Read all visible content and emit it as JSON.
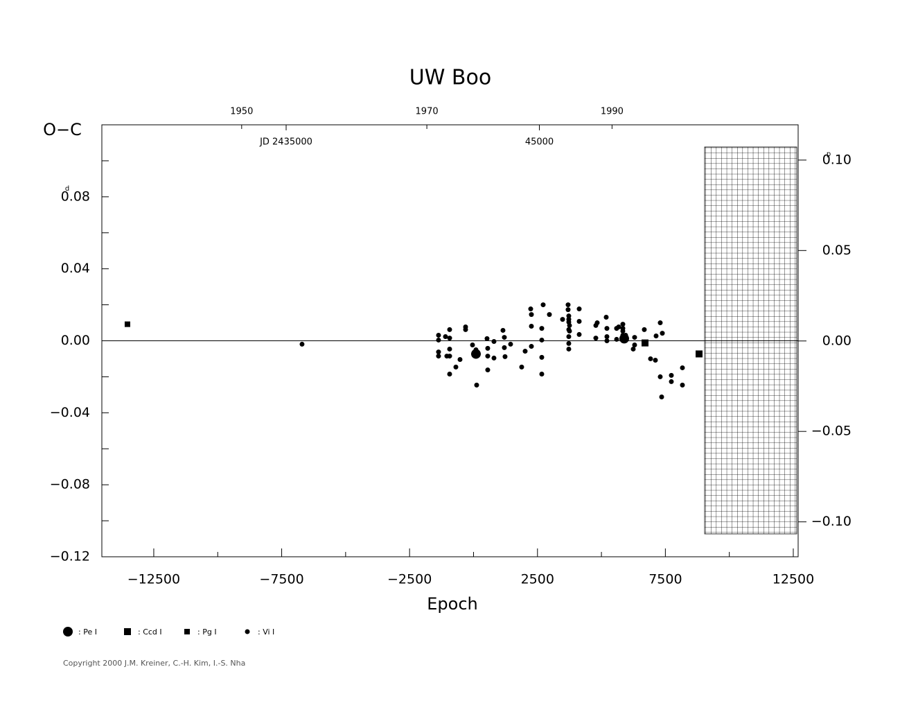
{
  "chart_data": {
    "type": "scatter",
    "title": "UW  Boo",
    "y_label": "O−C",
    "x_label": "Epoch",
    "y_unit": "d",
    "y2_unit": "p",
    "copyright": "Copyright 2000 J.M. Kreiner, C.-H. Kim, I.-S. Nha",
    "xlim": [
      -14530,
      12690
    ],
    "xticks": [
      {
        "value": -12500,
        "label": "−12500"
      },
      {
        "value": -7500,
        "label": "−7500"
      },
      {
        "value": -2500,
        "label": "−2500"
      },
      2500,
      7500,
      12500
    ],
    "xminorticks": [
      -10000,
      -5000,
      0,
      5000,
      10000
    ],
    "ylim": [
      -0.12,
      0.12
    ],
    "yticks": [
      {
        "value": -0.12,
        "label": "−0.12"
      },
      {
        "value": -0.08,
        "label": "−0.08"
      },
      {
        "value": -0.04,
        "label": "−0.04"
      },
      {
        "value": 0,
        "label": "0.00"
      },
      0.04,
      0.08
    ],
    "yminorticks": [
      -0.1,
      -0.06,
      -0.02,
      0.02,
      0.06,
      0.1
    ],
    "y2lim": [
      -0.1193,
      0.1195
    ],
    "y2ticks": [
      {
        "value": -0.1,
        "label": "−0.10"
      },
      {
        "value": -0.05,
        "label": "−0.05"
      },
      {
        "value": 0,
        "label": "0.00"
      },
      0.05,
      {
        "value": 0.1,
        "label": "0.10"
      }
    ],
    "x2lim": [
      1934.9,
      2010.1
    ],
    "x2ticks": [
      1950,
      1970,
      1990
    ],
    "x3lim": [
      2427722,
      2455219
    ],
    "x3ticks": [
      {
        "value": 2435000,
        "label": "JD 2435000"
      },
      {
        "value": 2445000,
        "label": "45000"
      }
    ],
    "series": [
      {
        "name": ": Pe I",
        "marker": "circle",
        "size": 7,
        "color": "#000000",
        "x": [
          95,
          5891
        ],
        "values": [
          -0.0073,
          0.0012
        ]
      },
      {
        "name": ": Ccd I",
        "marker": "square",
        "size": 10,
        "color": "#000000",
        "x": [
          6704,
          8817
        ],
        "values": [
          -0.0012,
          -0.0073
        ]
      },
      {
        "name": ": Pg I",
        "marker": "square",
        "size": 8,
        "color": "#000000",
        "x": [
          -13529
        ],
        "values": [
          0.0092
        ]
      },
      {
        "name": ": Vi I",
        "marker": "circle",
        "size": 3.5,
        "color": "#000000",
        "x": [
          -6704,
          -1368,
          -1368,
          -1368,
          -1368,
          -1097,
          -1043,
          -934,
          -934,
          -934,
          -934,
          -934,
          -690,
          -528,
          -311,
          -311,
          -40,
          95,
          122,
          528,
          555,
          555,
          555,
          799,
          799,
          1151,
          1205,
          1205,
          1232,
          1449,
          1882,
          2018,
          2235,
          2262,
          2262,
          2262,
          2668,
          2668,
          2668,
          2668,
          2722,
          2966,
          3481,
          3697,
          3697,
          3724,
          3724,
          3724,
          3724,
          3724,
          3724,
          3724,
          3752,
          3752,
          4131,
          4131,
          4131,
          4781,
          4781,
          4835,
          5187,
          5214,
          5214,
          5214,
          5593,
          5593,
          5674,
          5837,
          5837,
          5837,
          5837,
          5837,
          5945,
          6243,
          6297,
          6297,
          6676,
          6920,
          7110,
          7137,
          7299,
          7299,
          7354,
          7381,
          7733,
          7733,
          8166,
          8166
        ],
        "values": [
          -0.0019,
          0.0031,
          0.0004,
          -0.0062,
          -0.0085,
          0.0023,
          -0.0085,
          0.0062,
          0.0015,
          -0.0046,
          -0.0085,
          -0.0185,
          -0.0146,
          -0.0104,
          0.0077,
          0.0062,
          -0.0023,
          -0.005,
          -0.0246,
          0.0012,
          -0.0042,
          -0.0085,
          -0.0162,
          -0.0004,
          -0.0096,
          0.0058,
          0.0019,
          -0.0038,
          -0.0088,
          -0.0019,
          -0.0146,
          -0.0058,
          0.0177,
          0.0146,
          0.0081,
          -0.0031,
          0.0069,
          0.0004,
          -0.0092,
          -0.0185,
          0.02,
          0.0146,
          0.0119,
          0.02,
          0.0173,
          0.0138,
          0.0119,
          0.0104,
          0.0062,
          0.0023,
          -0.0015,
          -0.0046,
          0.0085,
          0.0054,
          0.0177,
          0.0108,
          0.0035,
          0.0015,
          0.0085,
          0.01,
          0.0131,
          0.0069,
          0.0023,
          0,
          0.0069,
          0.0008,
          0.0077,
          0.0092,
          0.0069,
          0.0054,
          0.0031,
          0.0008,
          0.0031,
          -0.0046,
          0.0019,
          -0.0023,
          0.0062,
          -0.01,
          -0.0108,
          0.0027,
          0.01,
          -0.02,
          -0.0312,
          0.0042,
          -0.0192,
          -0.0227,
          -0.015,
          -0.0246
        ]
      }
    ]
  }
}
